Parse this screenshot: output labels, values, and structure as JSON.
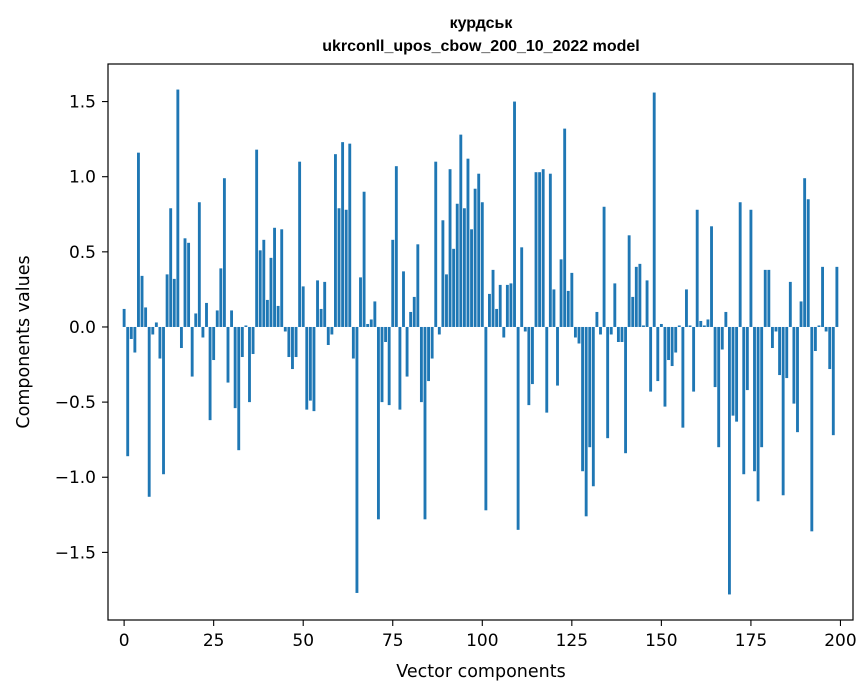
{
  "chart_data": {
    "type": "bar",
    "title_line1": "курдськ",
    "title_line2": "ukrconll_upos_cbow_200_10_2022 model",
    "xlabel": "Vector components",
    "ylabel": "Components values",
    "xlim": [
      -4.5,
      203.5
    ],
    "ylim": [
      -1.95,
      1.75
    ],
    "x_ticks": [
      0,
      25,
      50,
      75,
      100,
      125,
      150,
      175,
      200
    ],
    "x_tick_labels": [
      "0",
      "25",
      "50",
      "75",
      "100",
      "125",
      "150",
      "175",
      "200"
    ],
    "y_ticks": [
      1.5,
      1.0,
      0.5,
      0.0,
      -0.5,
      -1.0,
      -1.5
    ],
    "y_tick_labels": [
      "1.5",
      "1.0",
      "0.5",
      "0.0",
      "−0.5",
      "−1.0",
      "−1.5"
    ],
    "bar_color": "#1f77b4",
    "values": [
      0.12,
      -0.86,
      -0.08,
      -0.17,
      1.16,
      0.34,
      0.13,
      -1.13,
      -0.05,
      0.03,
      -0.21,
      -0.98,
      0.35,
      0.79,
      0.32,
      1.58,
      -0.14,
      0.59,
      0.56,
      -0.33,
      0.09,
      0.83,
      -0.07,
      0.16,
      -0.62,
      -0.22,
      0.11,
      0.39,
      0.99,
      -0.37,
      0.11,
      -0.54,
      -0.82,
      -0.2,
      0.01,
      -0.5,
      -0.18,
      1.18,
      0.51,
      0.58,
      0.18,
      0.46,
      0.66,
      0.14,
      0.65,
      -0.03,
      -0.2,
      -0.28,
      -0.2,
      1.1,
      0.27,
      -0.55,
      -0.49,
      -0.56,
      0.31,
      0.12,
      0.3,
      -0.12,
      -0.05,
      1.15,
      0.79,
      1.23,
      0.78,
      1.22,
      -0.21,
      -1.77,
      0.33,
      0.9,
      0.02,
      0.05,
      0.17,
      -1.28,
      -0.5,
      -0.1,
      -0.52,
      0.58,
      1.07,
      -0.55,
      0.37,
      -0.33,
      0.1,
      0.2,
      0.55,
      -0.5,
      -1.28,
      -0.36,
      -0.21,
      1.1,
      -0.05,
      0.71,
      0.35,
      1.05,
      0.52,
      0.82,
      1.28,
      0.79,
      1.12,
      0.65,
      0.92,
      1.02,
      0.83,
      -1.22,
      0.22,
      0.38,
      0.12,
      0.28,
      -0.07,
      0.28,
      0.29,
      1.5,
      -1.35,
      0.53,
      -0.03,
      -0.52,
      -0.38,
      1.03,
      1.03,
      1.05,
      -0.57,
      1.02,
      0.25,
      -0.39,
      0.45,
      1.32,
      0.24,
      0.36,
      -0.07,
      -0.11,
      -0.96,
      -1.26,
      -0.8,
      -1.06,
      0.1,
      -0.05,
      0.8,
      -0.74,
      -0.05,
      0.29,
      -0.1,
      -0.1,
      -0.84,
      0.61,
      0.2,
      0.4,
      0.42,
      0.01,
      0.31,
      -0.43,
      1.56,
      -0.36,
      0.02,
      -0.53,
      -0.22,
      -0.26,
      -0.17,
      0.01,
      -0.67,
      0.25,
      0.01,
      -0.43,
      0.78,
      0.04,
      0.01,
      0.05,
      0.67,
      -0.4,
      -0.8,
      -0.15,
      0.1,
      -1.78,
      -0.59,
      -0.63,
      0.83,
      -0.98,
      -0.42,
      0.78,
      -0.96,
      -1.16,
      -0.8,
      0.38,
      0.38,
      -0.14,
      -0.03,
      -0.32,
      -1.12,
      -0.34,
      0.3,
      -0.51,
      -0.7,
      0.17,
      0.99,
      0.85,
      -1.36,
      -0.16,
      0.01,
      0.4,
      -0.03,
      -0.28,
      -0.72,
      0.4
    ]
  }
}
